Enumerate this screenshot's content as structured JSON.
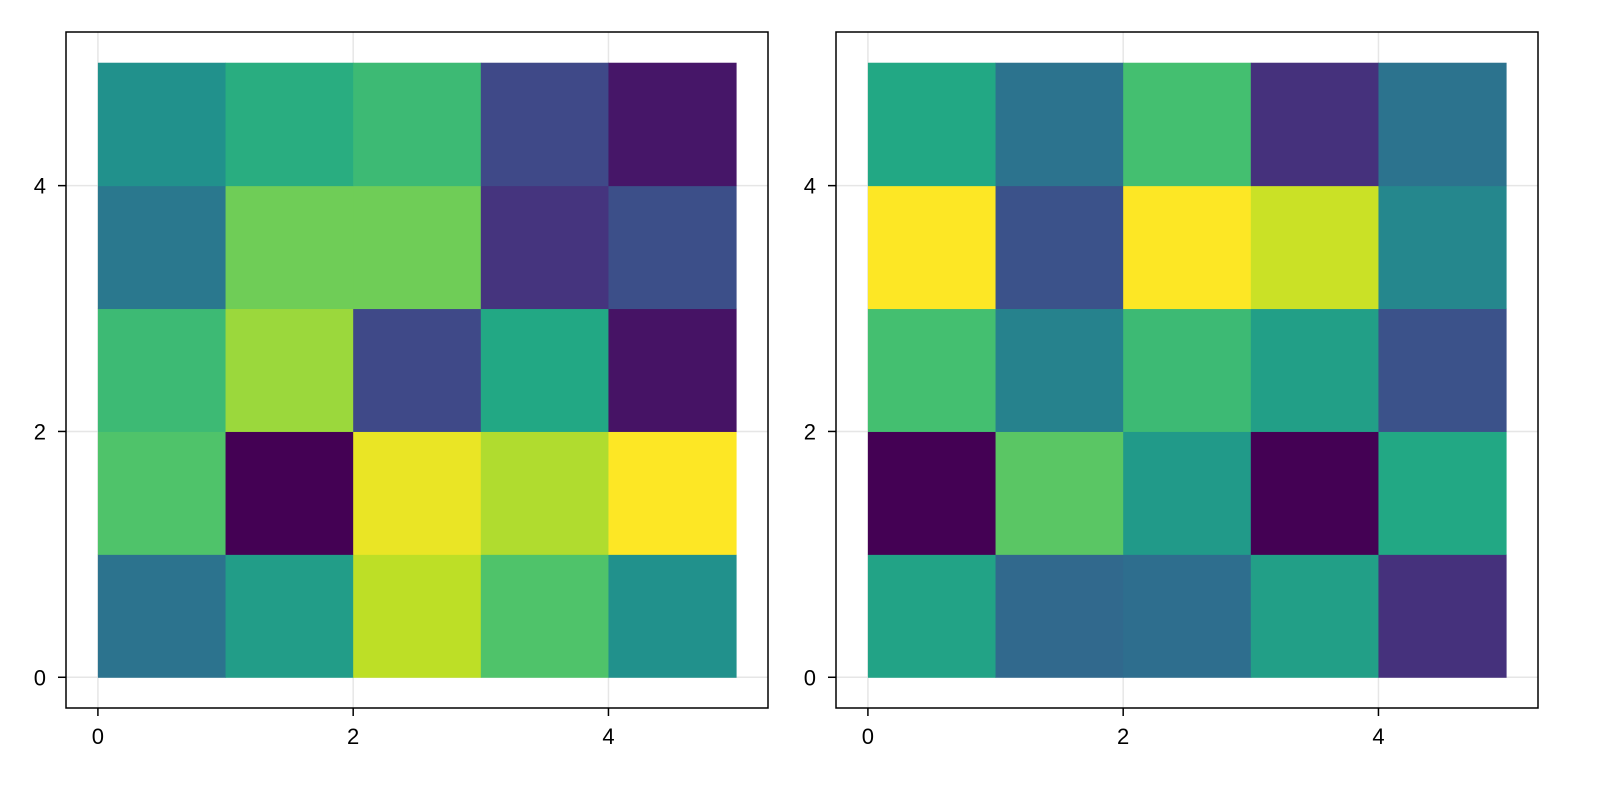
{
  "chart_data": [
    {
      "type": "heatmap",
      "colormap": "viridis",
      "x_edges": [
        0,
        1,
        2,
        3,
        4,
        5
      ],
      "y_edges": [
        0,
        1,
        2,
        3,
        4,
        5
      ],
      "xlim": [
        -0.25,
        5.25
      ],
      "ylim": [
        -0.25,
        5.25
      ],
      "x_ticks": [
        0,
        2,
        4
      ],
      "y_ticks": [
        0,
        2,
        4
      ],
      "x_tick_labels": [
        "0",
        "2",
        "4"
      ],
      "y_tick_labels": [
        "0",
        "2",
        "4"
      ],
      "grid": true,
      "values_rows_bottom_to_top": [
        [
          0.38,
          0.55,
          0.9,
          0.72,
          0.5
        ],
        [
          0.72,
          0.0,
          0.97,
          0.88,
          1.0
        ],
        [
          0.68,
          0.85,
          0.22,
          0.6,
          0.05
        ],
        [
          0.4,
          0.78,
          0.78,
          0.15,
          0.24
        ],
        [
          0.5,
          0.62,
          0.68,
          0.22,
          0.06
        ]
      ]
    },
    {
      "type": "heatmap",
      "colormap": "viridis",
      "x_edges": [
        0,
        1,
        2,
        3,
        4,
        5
      ],
      "y_edges": [
        0,
        1,
        2,
        3,
        4,
        5
      ],
      "xlim": [
        -0.25,
        5.25
      ],
      "ylim": [
        -0.25,
        5.25
      ],
      "x_ticks": [
        0,
        2,
        4
      ],
      "y_ticks": [
        0,
        2,
        4
      ],
      "x_tick_labels": [
        "0",
        "2",
        "4"
      ],
      "y_tick_labels": [
        "0",
        "2",
        "4"
      ],
      "grid": true,
      "values_rows_bottom_to_top": [
        [
          0.58,
          0.34,
          0.36,
          0.56,
          0.14
        ],
        [
          0.0,
          0.74,
          0.54,
          0.0,
          0.6
        ],
        [
          0.7,
          0.44,
          0.68,
          0.56,
          0.25
        ],
        [
          1.0,
          0.25,
          1.0,
          0.92,
          0.46
        ],
        [
          0.6,
          0.38,
          0.7,
          0.14,
          0.38
        ]
      ]
    }
  ]
}
